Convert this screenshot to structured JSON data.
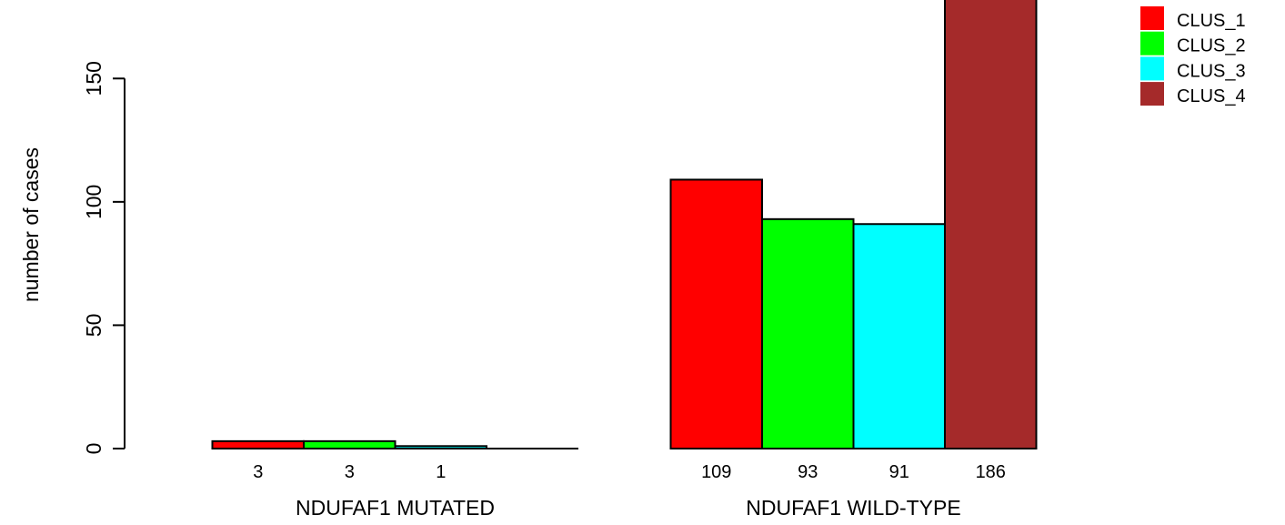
{
  "chart_data": {
    "type": "bar",
    "ylabel": "number of cases",
    "ylim": [
      0,
      186
    ],
    "yticks": [
      0,
      50,
      100,
      150
    ],
    "groups": [
      {
        "label": "NDUFAF1 MUTATED",
        "values": [
          3,
          3,
          1,
          0
        ],
        "value_labels": [
          "3",
          "3",
          "1",
          ""
        ]
      },
      {
        "label": "NDUFAF1 WILD-TYPE",
        "values": [
          109,
          93,
          91,
          186
        ],
        "value_labels": [
          "109",
          "93",
          "91",
          "186"
        ]
      }
    ],
    "series": [
      {
        "name": "CLUS_1",
        "color": "#ff0000"
      },
      {
        "name": "CLUS_2",
        "color": "#00ff00"
      },
      {
        "name": "CLUS_3",
        "color": "#00ffff"
      },
      {
        "name": "CLUS_4",
        "color": "#a52a2a"
      }
    ],
    "legend_position": "top-right"
  }
}
